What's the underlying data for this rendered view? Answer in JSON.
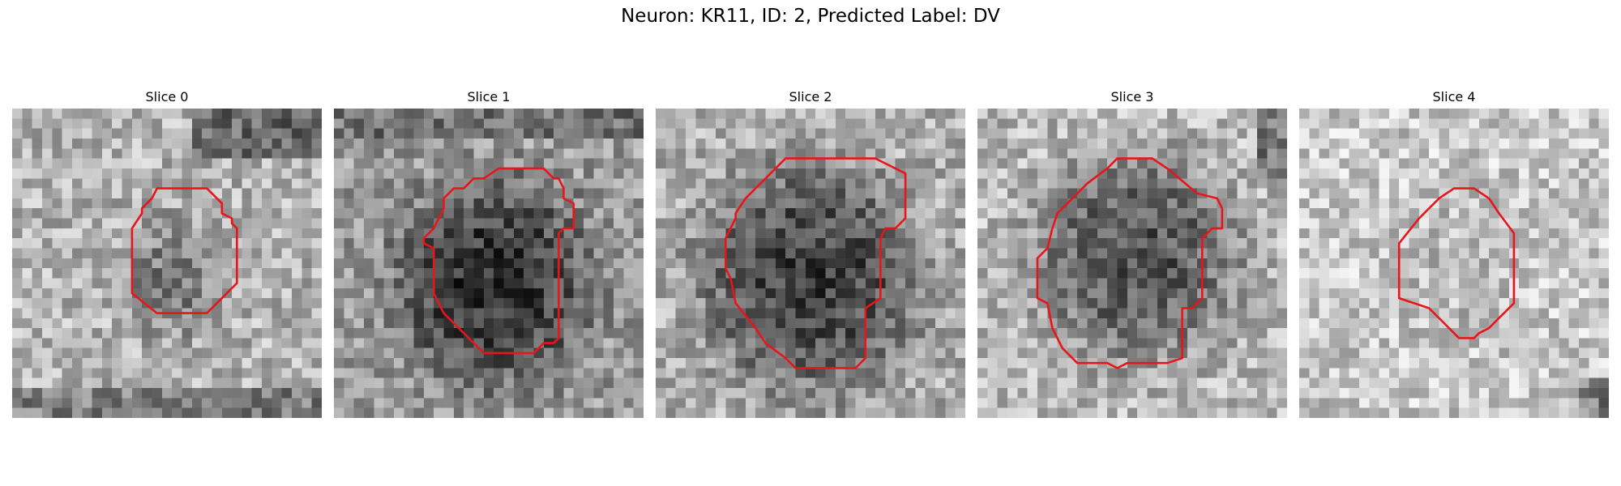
{
  "figure": {
    "title": "Neuron: KR11, ID: 2, Predicted Label: DV"
  },
  "colors": {
    "contour": "#e8151b",
    "background": "#ffffff"
  },
  "panels": [
    {
      "title": "Slice 0"
    },
    {
      "title": "Slice 1"
    },
    {
      "title": "Slice 2"
    },
    {
      "title": "Slice 3"
    },
    {
      "title": "Slice 4"
    }
  ]
}
